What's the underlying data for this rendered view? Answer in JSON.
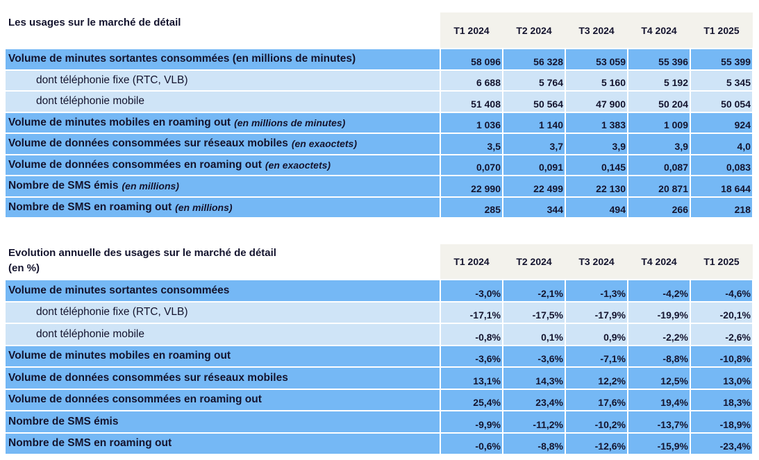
{
  "table1": {
    "title": "Les usages sur le marché de détail",
    "columns": [
      "T1 2024",
      "T2 2024",
      "T3 2024",
      "T4 2024",
      "T1 2025"
    ],
    "rows": [
      {
        "label": "Volume de minutes sortantes consommées (en millions de minutes)",
        "unit": "",
        "type": "main",
        "values": [
          "58 096",
          "56 328",
          "53 059",
          "55 396",
          "55 399"
        ]
      },
      {
        "label": "dont téléphonie fixe (RTC, VLB)",
        "unit": "",
        "type": "sub",
        "values": [
          "6 688",
          "5 764",
          "5 160",
          "5 192",
          "5 345"
        ]
      },
      {
        "label": "dont téléphonie mobile",
        "unit": "",
        "type": "sub",
        "values": [
          "51 408",
          "50 564",
          "47 900",
          "50 204",
          "50 054"
        ]
      },
      {
        "label": "Volume de minutes mobiles en roaming out",
        "unit": "(en millions de minutes)",
        "type": "main",
        "values": [
          "1 036",
          "1 140",
          "1 383",
          "1 009",
          "924"
        ]
      },
      {
        "label": "Volume de données consommées sur réseaux mobiles",
        "unit": "(en exaoctets)",
        "type": "main",
        "values": [
          "3,5",
          "3,7",
          "3,9",
          "3,9",
          "4,0"
        ]
      },
      {
        "label": "Volume de données consommées en roaming out",
        "unit": "(en exaoctets)",
        "type": "main",
        "values": [
          "0,070",
          "0,091",
          "0,145",
          "0,087",
          "0,083"
        ]
      },
      {
        "label": "Nombre de SMS émis",
        "unit": "(en millions)",
        "type": "main",
        "values": [
          "22 990",
          "22 499",
          "22 130",
          "20 871",
          "18 644"
        ]
      },
      {
        "label": "Nombre de SMS en roaming out",
        "unit": "(en millions)",
        "type": "main",
        "values": [
          "285",
          "344",
          "494",
          "266",
          "218"
        ]
      }
    ]
  },
  "table2": {
    "title": "Evolution annuelle des usages sur le marché de détail",
    "subtitle": "(en %)",
    "columns": [
      "T1 2024",
      "T2 2024",
      "T3 2024",
      "T4 2024",
      "T1 2025"
    ],
    "rows": [
      {
        "label": "Volume de minutes sortantes consommées",
        "type": "main",
        "values": [
          "-3,0%",
          "-2,1%",
          "-1,3%",
          "-4,2%",
          "-4,6%"
        ]
      },
      {
        "label": "dont téléphonie fixe (RTC, VLB)",
        "type": "sub",
        "values": [
          "-17,1%",
          "-17,5%",
          "-17,9%",
          "-19,9%",
          "-20,1%"
        ]
      },
      {
        "label": "dont téléphonie mobile",
        "type": "sub",
        "values": [
          "-0,8%",
          "0,1%",
          "0,9%",
          "-2,2%",
          "-2,6%"
        ]
      },
      {
        "label": "Volume de minutes mobiles en roaming out",
        "type": "main",
        "values": [
          "-3,6%",
          "-3,6%",
          "-7,1%",
          "-8,8%",
          "-10,8%"
        ]
      },
      {
        "label": "Volume de données consommées sur réseaux mobiles",
        "type": "main",
        "values": [
          "13,1%",
          "14,3%",
          "12,2%",
          "12,5%",
          "13,0%"
        ]
      },
      {
        "label": "Volume de données consommées en roaming out",
        "type": "main",
        "values": [
          "25,4%",
          "23,4%",
          "17,6%",
          "19,4%",
          "18,3%"
        ]
      },
      {
        "label": "Nombre de SMS émis",
        "type": "main",
        "values": [
          "-9,9%",
          "-11,2%",
          "-10,2%",
          "-13,7%",
          "-18,9%"
        ]
      },
      {
        "label": "Nombre de SMS en roaming out",
        "type": "main",
        "values": [
          "-0,6%",
          "-8,8%",
          "-12,6%",
          "-15,9%",
          "-23,4%"
        ]
      }
    ]
  },
  "colors": {
    "main_row": "#75b8f5",
    "sub_row": "#cfe4f7",
    "header": "#f3f2ec",
    "text": "#14142e"
  }
}
